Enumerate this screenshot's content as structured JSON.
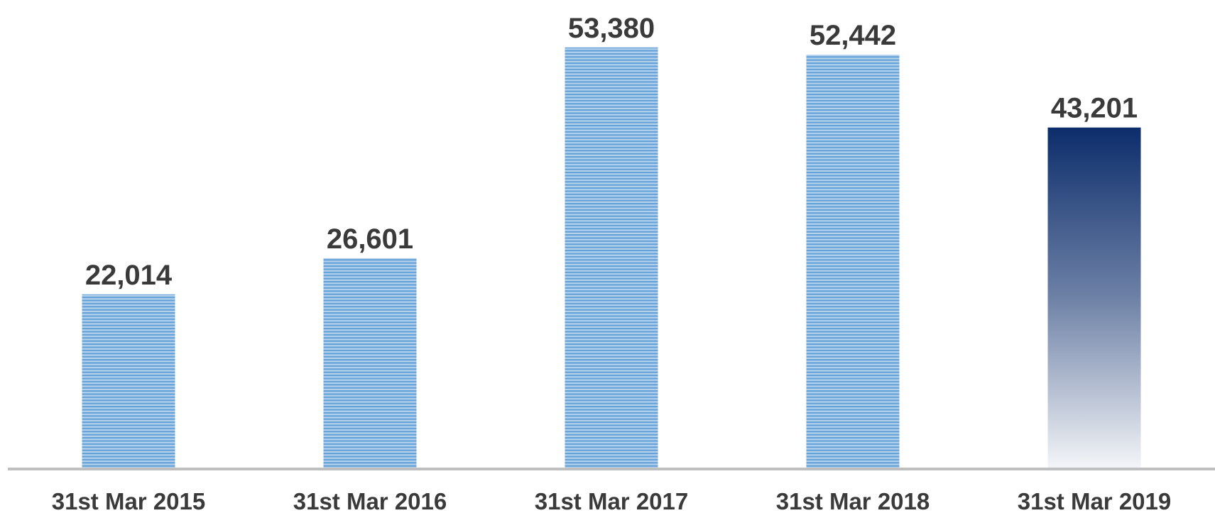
{
  "chart_data": {
    "type": "bar",
    "categories": [
      "31st Mar 2015",
      "31st Mar 2016",
      "31st Mar 2017",
      "31st Mar 2018",
      "31st Mar 2019"
    ],
    "values": [
      22014,
      26601,
      53380,
      52442,
      43201
    ],
    "value_labels": [
      "22,014",
      "26,601",
      "53,380",
      "52,442",
      "43,201"
    ],
    "colors": [
      "#5b9bd5",
      "#5b9bd5",
      "#5b9bd5",
      "#5b9bd5",
      "#0c2d6b"
    ],
    "styles": [
      "striped",
      "striped",
      "striped",
      "striped",
      "gradient"
    ],
    "ylim": [
      0,
      59400
    ]
  }
}
